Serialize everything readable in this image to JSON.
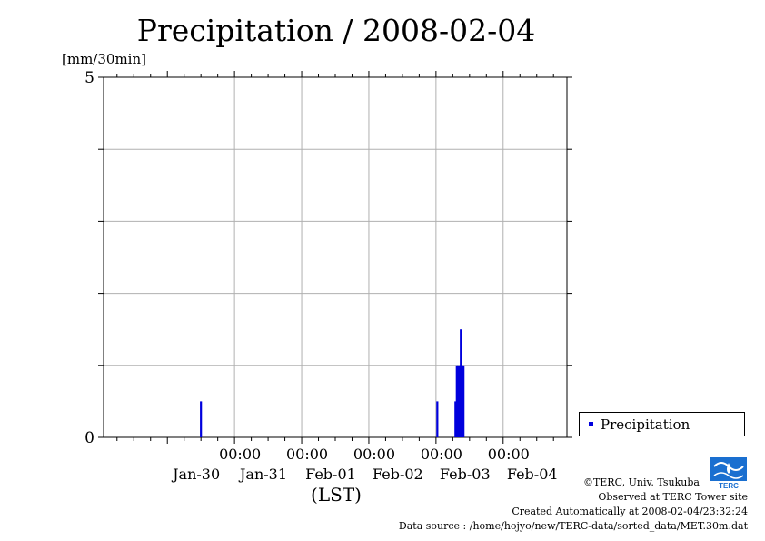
{
  "chart_data": {
    "type": "bar",
    "title": "Precipitation / 2008-02-04",
    "ylabel": "[mm/30min]",
    "xlabel": "(LST)",
    "ylim": [
      0,
      5
    ],
    "y_ticks": [
      "0",
      "5"
    ],
    "x_range_days": [
      -0.95,
      5.95
    ],
    "x_ticks": [
      {
        "pos": 1,
        "time": "00:00",
        "date": "Jan-30"
      },
      {
        "pos": 2,
        "time": "00:00",
        "date": "Jan-31"
      },
      {
        "pos": 3,
        "time": "00:00",
        "date": "Feb-01"
      },
      {
        "pos": 4,
        "time": "00:00",
        "date": "Feb-02"
      },
      {
        "pos": 5,
        "time": "00:00",
        "date": "Feb-03"
      }
    ],
    "extra_date_labels": [
      {
        "pos": 6,
        "date": "Feb-04"
      }
    ],
    "series": [
      {
        "name": "Precipitation",
        "color": "#0000dd",
        "points": [
          {
            "t": 0.5,
            "v": 0.5
          },
          {
            "t": 4.02,
            "v": 0.5
          },
          {
            "t": 4.29,
            "v": 0.5
          },
          {
            "t": 4.31,
            "v": 1.0
          },
          {
            "t": 4.33,
            "v": 1.0
          },
          {
            "t": 4.35,
            "v": 1.0
          },
          {
            "t": 4.37,
            "v": 1.5
          },
          {
            "t": 4.39,
            "v": 1.0
          },
          {
            "t": 4.41,
            "v": 1.0
          }
        ]
      }
    ],
    "grid": true,
    "legend_position": "right"
  },
  "credits": {
    "terc": "©TERC, Univ. Tsukuba",
    "observed": "Observed at TERC Tower site",
    "created": "Created Automatically at 2008-02-04/23:32:24",
    "source": "Data source : /home/hojyo/new/TERC-data/sorted_data/MET.30m.dat"
  },
  "logo": {
    "text": "TERC",
    "color": "#1a6fd0"
  }
}
